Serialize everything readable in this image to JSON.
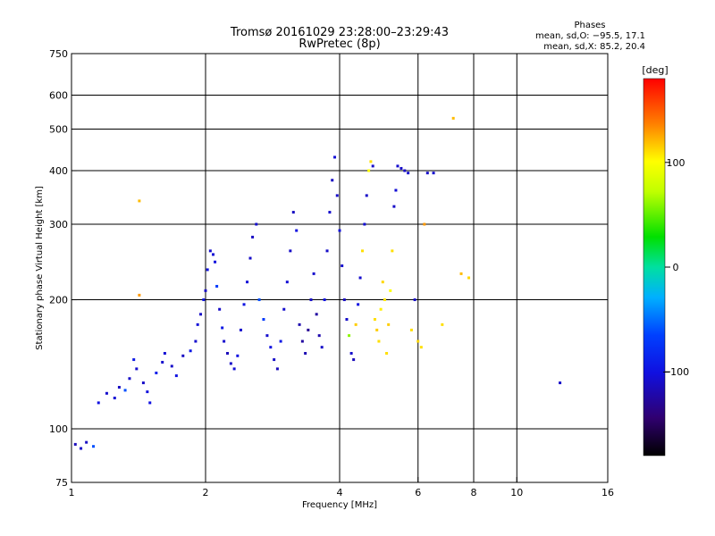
{
  "chart_data": {
    "type": "scatter",
    "title": "Tromsø 20161029 23:28:00–23:29:43",
    "subtitle": "RwPretec (8p)",
    "xlabel": "Frequency [MHz]",
    "ylabel": "Stationary phase Virtual Height [km]",
    "x_scale": "log",
    "y_scale": "log",
    "xlim": [
      1,
      16
    ],
    "ylim": [
      75,
      750
    ],
    "x_ticks": [
      1,
      2,
      4,
      6,
      8,
      10,
      16
    ],
    "y_ticks": [
      75,
      100,
      200,
      300,
      400,
      500,
      600,
      750
    ],
    "x_grid": [
      2,
      4,
      6,
      8,
      10
    ],
    "y_grid": [
      100,
      200,
      300,
      400,
      500,
      600
    ],
    "grid": true,
    "stats": {
      "title": "Phases",
      "line1": "mean, sd,O: −95.5, 17.1",
      "line2": "mean, sd,X: 85.2, 20.4"
    },
    "colorbar": {
      "label": "[deg]",
      "range": [
        -180,
        180
      ],
      "ticks": [
        100,
        0,
        -100
      ],
      "tick_labels": [
        "100",
        "0",
        "−100"
      ]
    },
    "points": [
      {
        "f": 1.02,
        "h": 92,
        "p": -115
      },
      {
        "f": 1.05,
        "h": 90,
        "p": -110
      },
      {
        "f": 1.08,
        "h": 93,
        "p": -112
      },
      {
        "f": 1.12,
        "h": 91,
        "p": -60
      },
      {
        "f": 1.15,
        "h": 115,
        "p": -100
      },
      {
        "f": 1.2,
        "h": 121,
        "p": -108
      },
      {
        "f": 1.25,
        "h": 118,
        "p": -105
      },
      {
        "f": 1.28,
        "h": 125,
        "p": -112
      },
      {
        "f": 1.32,
        "h": 123,
        "p": -60
      },
      {
        "f": 1.35,
        "h": 131,
        "p": -110
      },
      {
        "f": 1.38,
        "h": 145,
        "p": -95
      },
      {
        "f": 1.4,
        "h": 138,
        "p": -108
      },
      {
        "f": 1.42,
        "h": 340,
        "p": 120
      },
      {
        "f": 1.42,
        "h": 205,
        "p": 130
      },
      {
        "f": 1.45,
        "h": 128,
        "p": -110
      },
      {
        "f": 1.48,
        "h": 122,
        "p": -102
      },
      {
        "f": 1.5,
        "h": 115,
        "p": -100
      },
      {
        "f": 1.55,
        "h": 135,
        "p": -90
      },
      {
        "f": 1.6,
        "h": 143,
        "p": -108
      },
      {
        "f": 1.62,
        "h": 150,
        "p": -105
      },
      {
        "f": 1.68,
        "h": 140,
        "p": -110
      },
      {
        "f": 1.72,
        "h": 133,
        "p": -100
      },
      {
        "f": 1.78,
        "h": 148,
        "p": -112
      },
      {
        "f": 1.85,
        "h": 152,
        "p": -95
      },
      {
        "f": 1.9,
        "h": 160,
        "p": -108
      },
      {
        "f": 1.92,
        "h": 175,
        "p": -104
      },
      {
        "f": 1.95,
        "h": 185,
        "p": -110
      },
      {
        "f": 1.98,
        "h": 200,
        "p": -98
      },
      {
        "f": 2.0,
        "h": 210,
        "p": -112
      },
      {
        "f": 2.02,
        "h": 235,
        "p": -100
      },
      {
        "f": 2.05,
        "h": 260,
        "p": -108
      },
      {
        "f": 2.08,
        "h": 255,
        "p": -105
      },
      {
        "f": 2.1,
        "h": 245,
        "p": -102
      },
      {
        "f": 2.12,
        "h": 215,
        "p": -70
      },
      {
        "f": 2.15,
        "h": 190,
        "p": -110
      },
      {
        "f": 2.18,
        "h": 172,
        "p": -95
      },
      {
        "f": 2.2,
        "h": 160,
        "p": -108
      },
      {
        "f": 2.24,
        "h": 150,
        "p": -115
      },
      {
        "f": 2.28,
        "h": 142,
        "p": -110
      },
      {
        "f": 2.32,
        "h": 138,
        "p": -105
      },
      {
        "f": 2.36,
        "h": 148,
        "p": -100
      },
      {
        "f": 2.4,
        "h": 170,
        "p": -108
      },
      {
        "f": 2.44,
        "h": 195,
        "p": -98
      },
      {
        "f": 2.48,
        "h": 220,
        "p": -104
      },
      {
        "f": 2.52,
        "h": 250,
        "p": -110
      },
      {
        "f": 2.55,
        "h": 280,
        "p": -112
      },
      {
        "f": 2.6,
        "h": 300,
        "p": -108
      },
      {
        "f": 2.64,
        "h": 200,
        "p": -60
      },
      {
        "f": 2.7,
        "h": 180,
        "p": -70
      },
      {
        "f": 2.75,
        "h": 165,
        "p": -108
      },
      {
        "f": 2.8,
        "h": 155,
        "p": -100
      },
      {
        "f": 2.85,
        "h": 145,
        "p": -110
      },
      {
        "f": 2.9,
        "h": 138,
        "p": -115
      },
      {
        "f": 2.95,
        "h": 160,
        "p": -95
      },
      {
        "f": 3.0,
        "h": 190,
        "p": -108
      },
      {
        "f": 3.05,
        "h": 220,
        "p": -105
      },
      {
        "f": 3.1,
        "h": 260,
        "p": -110
      },
      {
        "f": 3.15,
        "h": 320,
        "p": -112
      },
      {
        "f": 3.2,
        "h": 290,
        "p": -100
      },
      {
        "f": 3.25,
        "h": 175,
        "p": -120
      },
      {
        "f": 3.3,
        "h": 160,
        "p": -125
      },
      {
        "f": 3.35,
        "h": 150,
        "p": -118
      },
      {
        "f": 3.4,
        "h": 170,
        "p": -130
      },
      {
        "f": 3.45,
        "h": 200,
        "p": -110
      },
      {
        "f": 3.5,
        "h": 230,
        "p": -108
      },
      {
        "f": 3.55,
        "h": 185,
        "p": -125
      },
      {
        "f": 3.6,
        "h": 165,
        "p": -120
      },
      {
        "f": 3.65,
        "h": 155,
        "p": -110
      },
      {
        "f": 3.7,
        "h": 200,
        "p": -100
      },
      {
        "f": 3.75,
        "h": 260,
        "p": -110
      },
      {
        "f": 3.8,
        "h": 320,
        "p": -108
      },
      {
        "f": 3.85,
        "h": 380,
        "p": -112
      },
      {
        "f": 3.9,
        "h": 430,
        "p": -105
      },
      {
        "f": 3.95,
        "h": 350,
        "p": -110
      },
      {
        "f": 4.0,
        "h": 290,
        "p": -102
      },
      {
        "f": 4.05,
        "h": 240,
        "p": -108
      },
      {
        "f": 4.1,
        "h": 200,
        "p": -112
      },
      {
        "f": 4.15,
        "h": 180,
        "p": -110
      },
      {
        "f": 4.2,
        "h": 165,
        "p": 60
      },
      {
        "f": 4.25,
        "h": 150,
        "p": -108
      },
      {
        "f": 4.3,
        "h": 145,
        "p": -115
      },
      {
        "f": 4.35,
        "h": 175,
        "p": 115
      },
      {
        "f": 4.4,
        "h": 195,
        "p": -100
      },
      {
        "f": 4.45,
        "h": 225,
        "p": -108
      },
      {
        "f": 4.5,
        "h": 260,
        "p": 110
      },
      {
        "f": 4.55,
        "h": 300,
        "p": -105
      },
      {
        "f": 4.6,
        "h": 350,
        "p": -110
      },
      {
        "f": 4.65,
        "h": 400,
        "p": 100
      },
      {
        "f": 4.7,
        "h": 420,
        "p": 110
      },
      {
        "f": 4.75,
        "h": 410,
        "p": -110
      },
      {
        "f": 4.8,
        "h": 180,
        "p": 110
      },
      {
        "f": 4.85,
        "h": 170,
        "p": 115
      },
      {
        "f": 4.9,
        "h": 160,
        "p": 110
      },
      {
        "f": 4.95,
        "h": 190,
        "p": 105
      },
      {
        "f": 5.0,
        "h": 220,
        "p": 112
      },
      {
        "f": 5.05,
        "h": 200,
        "p": 108
      },
      {
        "f": 5.1,
        "h": 150,
        "p": 110
      },
      {
        "f": 5.15,
        "h": 175,
        "p": 115
      },
      {
        "f": 5.2,
        "h": 210,
        "p": 100
      },
      {
        "f": 5.25,
        "h": 260,
        "p": 110
      },
      {
        "f": 5.3,
        "h": 330,
        "p": -110
      },
      {
        "f": 5.35,
        "h": 360,
        "p": -105
      },
      {
        "f": 5.4,
        "h": 410,
        "p": -108
      },
      {
        "f": 5.5,
        "h": 405,
        "p": -110
      },
      {
        "f": 5.6,
        "h": 400,
        "p": -112
      },
      {
        "f": 5.7,
        "h": 395,
        "p": -108
      },
      {
        "f": 5.8,
        "h": 170,
        "p": 110
      },
      {
        "f": 5.9,
        "h": 200,
        "p": -110
      },
      {
        "f": 6.0,
        "h": 160,
        "p": 112
      },
      {
        "f": 6.1,
        "h": 155,
        "p": 110
      },
      {
        "f": 6.2,
        "h": 300,
        "p": 130
      },
      {
        "f": 6.3,
        "h": 395,
        "p": -110
      },
      {
        "f": 6.5,
        "h": 395,
        "p": -108
      },
      {
        "f": 6.8,
        "h": 175,
        "p": 110
      },
      {
        "f": 7.2,
        "h": 530,
        "p": 120
      },
      {
        "f": 7.5,
        "h": 230,
        "p": 120
      },
      {
        "f": 7.8,
        "h": 225,
        "p": 112
      },
      {
        "f": 12.5,
        "h": 128,
        "p": -110
      }
    ]
  }
}
